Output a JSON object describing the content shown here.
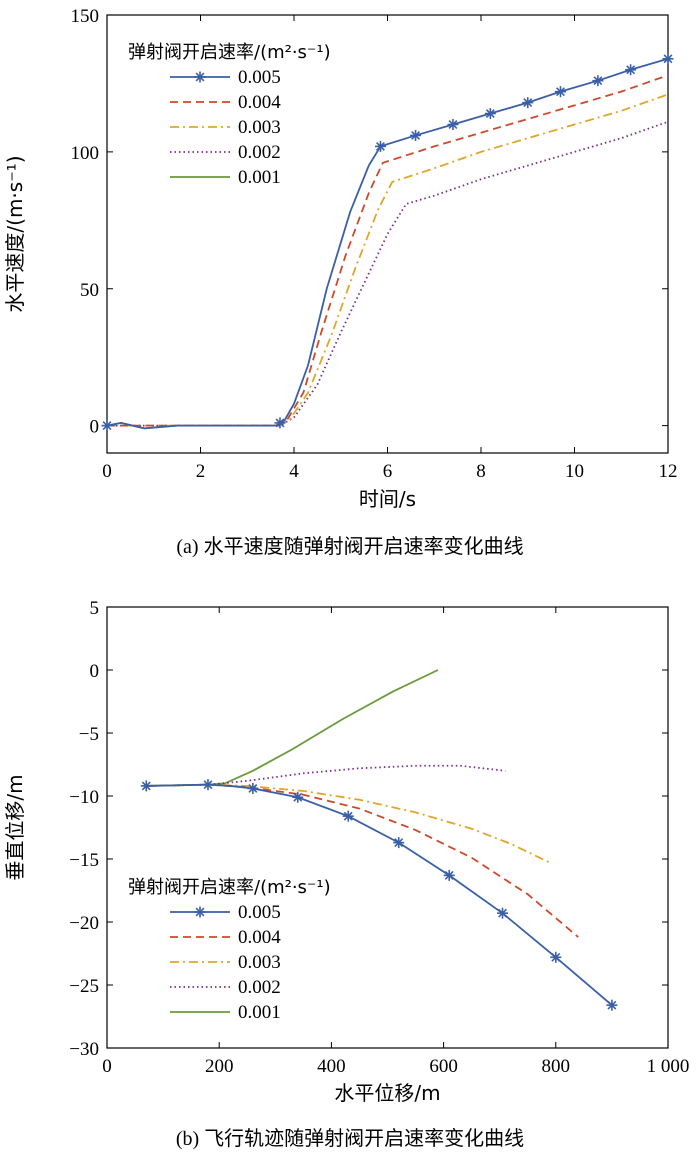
{
  "chart_data": [
    {
      "type": "line",
      "id": "a",
      "caption": "(a) 水平速度随弹射阀开启速率变化曲线",
      "xlabel": "时间/s",
      "ylabel": "水平速度/(m·s⁻¹)",
      "xlim": [
        0,
        12
      ],
      "ylim": [
        -10,
        150
      ],
      "xticks": [
        0,
        2,
        4,
        6,
        8,
        10,
        12
      ],
      "yticks": [
        0,
        50,
        100,
        150
      ],
      "xtick_labels": [
        "0",
        "2",
        "4",
        "6",
        "8",
        "10",
        "12"
      ],
      "ytick_labels": [
        "0",
        "50",
        "100",
        "150"
      ],
      "legend_title": "弹射阀开启速率/(m²·s⁻¹)",
      "legend_position": "top-left",
      "series": [
        {
          "name": "0.005",
          "color": "#3a5fa8",
          "dash": "solid",
          "marker": "star",
          "x": [
            0,
            0.3,
            0.8,
            1.5,
            2.5,
            3.3,
            3.65,
            3.8,
            4.0,
            4.3,
            4.7,
            5.2,
            5.6,
            5.85,
            6.6,
            7.4,
            8.2,
            9.0,
            9.7,
            10.5,
            11.2,
            12
          ],
          "y": [
            0,
            1,
            -1,
            0,
            0,
            0,
            0,
            2,
            8,
            22,
            50,
            78,
            95,
            102,
            106,
            110,
            114,
            118,
            122,
            126,
            130,
            134
          ],
          "markers_x": [
            0,
            3.7,
            5.85,
            6.6,
            7.4,
            8.2,
            9.0,
            9.7,
            10.5,
            11.2,
            12
          ],
          "markers_y": [
            0,
            1,
            102,
            106,
            110,
            114,
            118,
            122,
            126,
            130,
            134
          ]
        },
        {
          "name": "0.004",
          "color": "#cc4a2a",
          "dash": "8,5",
          "marker": "none",
          "x": [
            0,
            3.6,
            3.85,
            4.2,
            4.6,
            5.1,
            5.6,
            5.9,
            7,
            8,
            9,
            10,
            11,
            12
          ],
          "y": [
            0,
            0,
            2,
            12,
            35,
            62,
            85,
            96,
            102,
            107,
            112,
            117,
            122,
            128
          ]
        },
        {
          "name": "0.003",
          "color": "#e0a62a",
          "dash": "9,4,2,4",
          "marker": "none",
          "x": [
            0,
            3.6,
            3.9,
            4.3,
            4.8,
            5.3,
            5.8,
            6.1,
            7,
            8,
            9,
            10,
            11,
            12
          ],
          "y": [
            0,
            0,
            2,
            12,
            33,
            57,
            79,
            89,
            94,
            100,
            105,
            110,
            115,
            121
          ]
        },
        {
          "name": "0.002",
          "color": "#7a2a8a",
          "dash": "1.5,3",
          "marker": "none",
          "x": [
            0,
            3.7,
            4.0,
            4.5,
            5.0,
            5.5,
            6.0,
            6.4,
            7,
            8,
            9,
            10,
            11,
            12
          ],
          "y": [
            0,
            0,
            3,
            15,
            34,
            52,
            70,
            81,
            84,
            90,
            95,
            100,
            105,
            111
          ]
        },
        {
          "name": "0.001",
          "color": "#6a9a3a",
          "dash": "solid",
          "marker": "none",
          "x": [
            0,
            0.3,
            0.8,
            1.5,
            2.5,
            3.7
          ],
          "y": [
            0,
            1,
            -1,
            0,
            0,
            0
          ]
        }
      ]
    },
    {
      "type": "line",
      "id": "b",
      "caption": "(b) 飞行轨迹随弹射阀开启速率变化曲线",
      "xlabel": "水平位移/m",
      "ylabel": "垂直位移/m",
      "xlim": [
        0,
        1000
      ],
      "ylim": [
        -30,
        5
      ],
      "xticks": [
        0,
        200,
        400,
        600,
        800,
        1000
      ],
      "yticks": [
        5,
        0,
        -5,
        -10,
        -15,
        -20,
        -25,
        -30
      ],
      "xtick_labels": [
        "0",
        "200",
        "400",
        "600",
        "800",
        "1 000"
      ],
      "ytick_labels": [
        "5",
        "0",
        "−5",
        "−10",
        "−15",
        "−20",
        "−25",
        "−30"
      ],
      "legend_title": "弹射阀开启速率/(m²·s⁻¹)",
      "legend_position": "lower-left",
      "series": [
        {
          "name": "0.005",
          "color": "#3a5fa8",
          "dash": "solid",
          "marker": "star",
          "x": [
            70,
            180,
            220,
            260,
            340,
            430,
            520,
            610,
            705,
            800,
            900
          ],
          "y": [
            -9.2,
            -9.1,
            -9.2,
            -9.4,
            -10.1,
            -11.6,
            -13.7,
            -16.3,
            -19.3,
            -22.8,
            -26.6
          ],
          "markers_x": [
            70,
            180,
            260,
            340,
            430,
            520,
            610,
            705,
            800,
            900
          ],
          "markers_y": [
            -9.2,
            -9.1,
            -9.4,
            -10.1,
            -11.6,
            -13.7,
            -16.3,
            -19.3,
            -22.8,
            -26.6
          ]
        },
        {
          "name": "0.004",
          "color": "#cc4a2a",
          "dash": "8,5",
          "marker": "none",
          "x": [
            70,
            180,
            250,
            350,
            450,
            550,
            650,
            750,
            840
          ],
          "y": [
            -9.2,
            -9.1,
            -9.3,
            -9.9,
            -11.0,
            -12.7,
            -14.9,
            -17.8,
            -21.2
          ]
        },
        {
          "name": "0.003",
          "color": "#e0a62a",
          "dash": "9,4,2,4",
          "marker": "none",
          "x": [
            70,
            180,
            250,
            350,
            450,
            550,
            650,
            720,
            790
          ],
          "y": [
            -9.2,
            -9.1,
            -9.2,
            -9.6,
            -10.3,
            -11.3,
            -12.6,
            -13.8,
            -15.3
          ]
        },
        {
          "name": "0.002",
          "color": "#7a2a8a",
          "dash": "1.5,3",
          "marker": "none",
          "x": [
            70,
            180,
            250,
            350,
            450,
            550,
            630,
            710
          ],
          "y": [
            -9.2,
            -9.1,
            -8.8,
            -8.2,
            -7.8,
            -7.6,
            -7.6,
            -8.0
          ]
        },
        {
          "name": "0.001",
          "color": "#6a9a3a",
          "dash": "solid",
          "marker": "none",
          "x": [
            70,
            180,
            210,
            260,
            330,
            420,
            510,
            590
          ],
          "y": [
            -9.2,
            -9.1,
            -9.0,
            -8.0,
            -6.3,
            -3.9,
            -1.7,
            0.0
          ]
        }
      ]
    }
  ]
}
